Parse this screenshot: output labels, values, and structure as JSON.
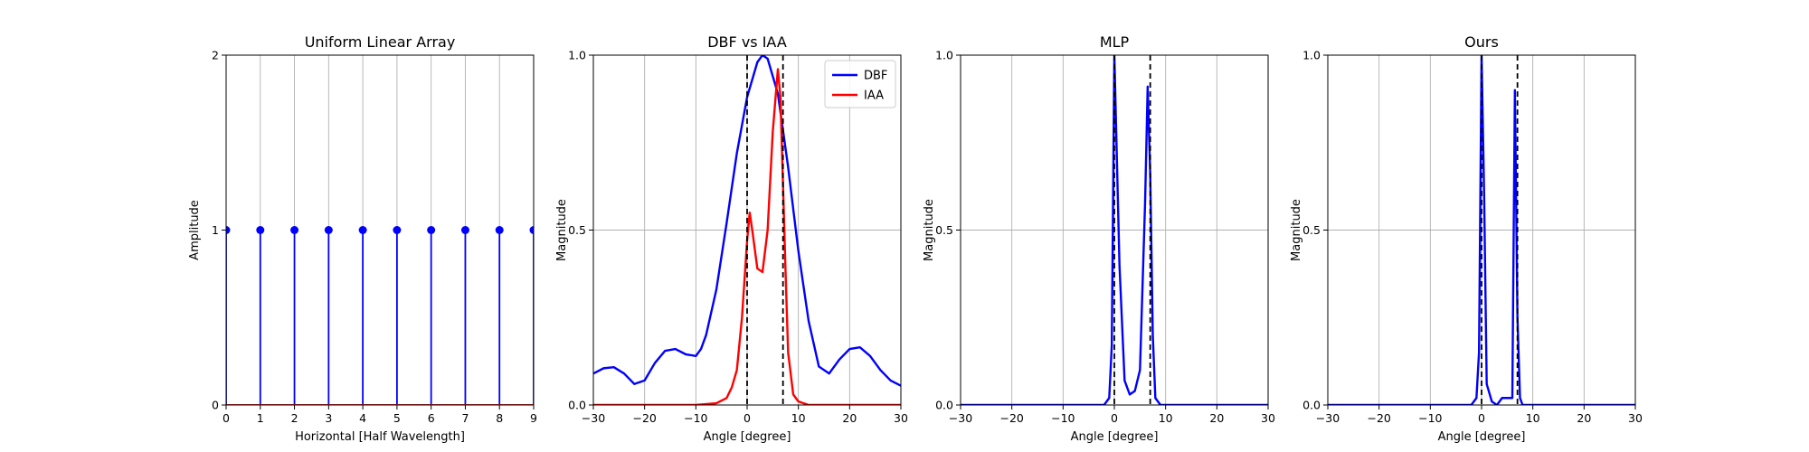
{
  "chart_data": [
    {
      "type": "stem",
      "title": "Uniform Linear Array",
      "xlabel": "Horizontal [Half Wavelength]",
      "ylabel": "Amplitude",
      "xlim": [
        0,
        9
      ],
      "ylim": [
        0,
        2
      ],
      "xticks": [
        0,
        1,
        2,
        3,
        4,
        5,
        6,
        7,
        8,
        9
      ],
      "xtick_labels": [
        "0",
        "1",
        "2",
        "3",
        "4",
        "5",
        "6",
        "7",
        "8",
        "9"
      ],
      "yticks": [
        0,
        1,
        2
      ],
      "ytick_labels": [
        "0",
        "1",
        "2"
      ],
      "grid": "x",
      "stem_color": "#0000ff",
      "baseline_color": "#d62728",
      "x": [
        0,
        1,
        2,
        3,
        4,
        5,
        6,
        7,
        8,
        9
      ],
      "y": [
        1,
        1,
        1,
        1,
        1,
        1,
        1,
        1,
        1,
        1
      ]
    },
    {
      "type": "line",
      "title": "DBF vs IAA",
      "xlabel": "Angle [degree]",
      "ylabel": "Magnitude",
      "xlim": [
        -30,
        30
      ],
      "ylim": [
        0,
        1
      ],
      "xticks": [
        -30,
        -20,
        -10,
        0,
        10,
        20,
        30
      ],
      "xtick_labels": [
        "−30",
        "−20",
        "−10",
        "0",
        "10",
        "20",
        "30"
      ],
      "yticks": [
        0,
        0.5,
        1
      ],
      "ytick_labels": [
        "0.0",
        "0.5",
        "1.0"
      ],
      "grid": "both",
      "vlines": [
        0,
        7
      ],
      "legend": "top-right",
      "series": [
        {
          "name": "DBF",
          "color": "#0000ff",
          "x": [
            -30,
            -28,
            -26,
            -24,
            -22,
            -20,
            -18,
            -16,
            -14,
            -12,
            -10,
            -9,
            -8,
            -6,
            -4,
            -2,
            0,
            2,
            3,
            4,
            6,
            8,
            10,
            12,
            14,
            16,
            17,
            18,
            20,
            22,
            24,
            26,
            28,
            30
          ],
          "y": [
            0.09,
            0.105,
            0.108,
            0.09,
            0.06,
            0.07,
            0.12,
            0.155,
            0.16,
            0.145,
            0.14,
            0.16,
            0.2,
            0.33,
            0.52,
            0.72,
            0.88,
            0.98,
            1.0,
            0.99,
            0.89,
            0.68,
            0.44,
            0.24,
            0.11,
            0.09,
            0.11,
            0.13,
            0.16,
            0.165,
            0.14,
            0.1,
            0.07,
            0.055
          ]
        },
        {
          "name": "IAA",
          "color": "#ff0000",
          "x": [
            -30,
            -10,
            -6,
            -4,
            -3,
            -2,
            -1,
            -0.5,
            0,
            0.5,
            1,
            2,
            3,
            4,
            5,
            6,
            6.5,
            7,
            7.5,
            8,
            9,
            10,
            12,
            30
          ],
          "y": [
            0.0,
            0.0,
            0.005,
            0.02,
            0.05,
            0.1,
            0.25,
            0.36,
            0.47,
            0.55,
            0.5,
            0.39,
            0.38,
            0.5,
            0.78,
            0.96,
            0.88,
            0.63,
            0.38,
            0.15,
            0.03,
            0.01,
            0.0,
            0.0
          ]
        }
      ]
    },
    {
      "type": "line",
      "title": "MLP",
      "xlabel": "Angle [degree]",
      "ylabel": "Magnitude",
      "xlim": [
        -30,
        30
      ],
      "ylim": [
        0,
        1
      ],
      "xticks": [
        -30,
        -20,
        -10,
        0,
        10,
        20,
        30
      ],
      "xtick_labels": [
        "−30",
        "−20",
        "−10",
        "0",
        "10",
        "20",
        "30"
      ],
      "yticks": [
        0,
        0.5,
        1
      ],
      "ytick_labels": [
        "0.0",
        "0.5",
        "1.0"
      ],
      "grid": "both",
      "vlines": [
        0,
        7
      ],
      "series": [
        {
          "color": "#0000ff",
          "x": [
            -30,
            -2,
            -1,
            -0.5,
            0,
            0.5,
            1,
            2,
            3,
            4,
            5,
            6,
            6.5,
            7,
            7.5,
            8,
            9,
            30
          ],
          "y": [
            0.0,
            0.0,
            0.02,
            0.17,
            1.0,
            0.7,
            0.4,
            0.07,
            0.03,
            0.04,
            0.1,
            0.58,
            0.91,
            0.66,
            0.2,
            0.02,
            0.0,
            0.0
          ]
        }
      ]
    },
    {
      "type": "line",
      "title": "Ours",
      "xlabel": "Angle [degree]",
      "ylabel": "Magnitude",
      "xlim": [
        -30,
        30
      ],
      "ylim": [
        0,
        1
      ],
      "xticks": [
        -30,
        -20,
        -10,
        0,
        10,
        20,
        30
      ],
      "xtick_labels": [
        "−30",
        "−20",
        "−10",
        "0",
        "10",
        "20",
        "30"
      ],
      "yticks": [
        0,
        0.5,
        1
      ],
      "ytick_labels": [
        "0.0",
        "0.5",
        "1.0"
      ],
      "grid": "both",
      "vlines": [
        0,
        7
      ],
      "series": [
        {
          "color": "#0000ff",
          "x": [
            -30,
            -2,
            -1,
            -0.5,
            0,
            0.5,
            1,
            2,
            3,
            4,
            5,
            6,
            6.5,
            7,
            7.5,
            8,
            30
          ],
          "y": [
            0.0,
            0.0,
            0.02,
            0.15,
            1.0,
            0.6,
            0.06,
            0.01,
            0.0,
            0.02,
            0.02,
            0.02,
            0.9,
            0.25,
            0.02,
            0.0,
            0.0
          ]
        }
      ]
    }
  ]
}
